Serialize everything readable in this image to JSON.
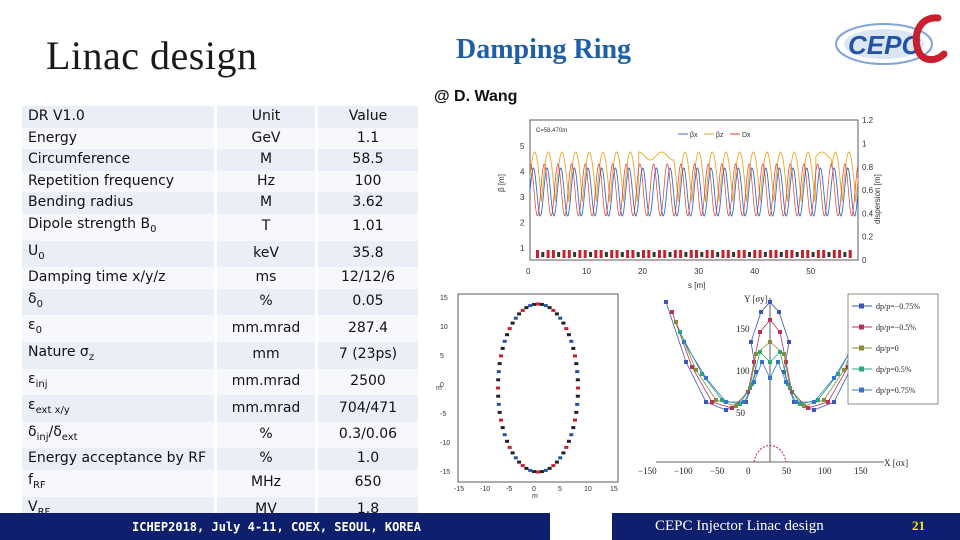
{
  "header": {
    "title_left": "Linac design",
    "title_right": "Damping Ring",
    "logo_text": "CEPC"
  },
  "credit": "@ D. Wang",
  "params_table": {
    "rows": [
      {
        "name": "DR V1.0",
        "unit": "Unit",
        "value": "Value"
      },
      {
        "name": "Energy",
        "unit": "GeV",
        "value": "1.1"
      },
      {
        "name": "Circumference",
        "unit": "M",
        "value": "58.5"
      },
      {
        "name": "Repetition frequency",
        "unit": "Hz",
        "value": "100"
      },
      {
        "name": "Bending radius",
        "unit": "M",
        "value": "3.62"
      },
      {
        "name": "Dipole strength B",
        "sub": "0",
        "unit": "T",
        "value": "1.01"
      },
      {
        "name": "U",
        "sub": "0",
        "unit": "keV",
        "value": "35.8"
      },
      {
        "name": "Damping time x/y/z",
        "unit": "ms",
        "value": "12/12/6"
      },
      {
        "name": "δ",
        "sub": "0",
        "unit": "%",
        "value": "0.05"
      },
      {
        "name": "ε",
        "sub": "0",
        "unit": "mm.mrad",
        "value": "287.4"
      },
      {
        "name": "Nature σ",
        "sub": "z",
        "unit": "mm",
        "value": "7 (23ps)"
      },
      {
        "name": "ε",
        "sub": "inj",
        "unit": "mm.mrad",
        "value": "2500"
      },
      {
        "name": "ε",
        "sub": "ext x/y",
        "unit": "mm.mrad",
        "value": "704/471"
      },
      {
        "name": "δ",
        "sub": "inj",
        "name2": "/δ",
        "sub2": "ext",
        "unit": "%",
        "value": "0.3/0.06"
      },
      {
        "name": "Energy acceptance by RF",
        "unit": "%",
        "value": "1.0"
      },
      {
        "name": "f",
        "sub": "RF",
        "unit": "MHz",
        "value": "650"
      },
      {
        "name": "V",
        "sub": "RF",
        "unit": "MV",
        "value": "1.8"
      }
    ]
  },
  "optics_plot": {
    "legend": [
      "βx",
      "βz",
      "Dx"
    ],
    "y_left_label": "β [m]",
    "y_right_label": "dispersion [m]",
    "x_label": "s [m]",
    "corner_note": "C=58.470m",
    "x_ticks": [
      "0",
      "10",
      "20",
      "30",
      "40",
      "50"
    ],
    "y_left_ticks": [
      "1",
      "2",
      "3",
      "4",
      "5"
    ],
    "y_right_ticks": [
      "0",
      "0.2",
      "0.4",
      "0.6",
      "0.8",
      "1",
      "1.2"
    ],
    "colors": {
      "betax": "#2e6fd0",
      "betaz": "#e8a92a",
      "dx": "#e23b2b"
    }
  },
  "dynamic_aperture_plot": {
    "y_ticks": [
      "15",
      "10",
      "5",
      "0",
      "-5",
      "-10",
      "-15"
    ],
    "x_ticks": [
      "-15",
      "-10",
      "-5",
      "0",
      "5",
      "10",
      "15"
    ],
    "x_label": "m",
    "y_label": "m"
  },
  "acceptance_plot": {
    "y_label": "Y [σy]",
    "x_label": "X [σx]",
    "y_ticks": [
      "150",
      "100",
      "50"
    ],
    "x_ticks": [
      "−150",
      "−100",
      "−50",
      "0",
      "50",
      "100",
      "150"
    ],
    "legend": [
      "dp/p=−0.75%",
      "dp/p=−0.5%",
      "dp/p=0",
      "dp/p=0.5%",
      "dp/p=0.75%"
    ],
    "legend_colors": [
      "#3b56b5",
      "#b8315a",
      "#8a8a3a",
      "#2aa87a",
      "#3576c9"
    ]
  },
  "footer": {
    "conference": "ICHEP2018, July 4-11, COEX, SEOUL, KOREA",
    "talk": "CEPC Injector Linac design",
    "page": "21"
  }
}
